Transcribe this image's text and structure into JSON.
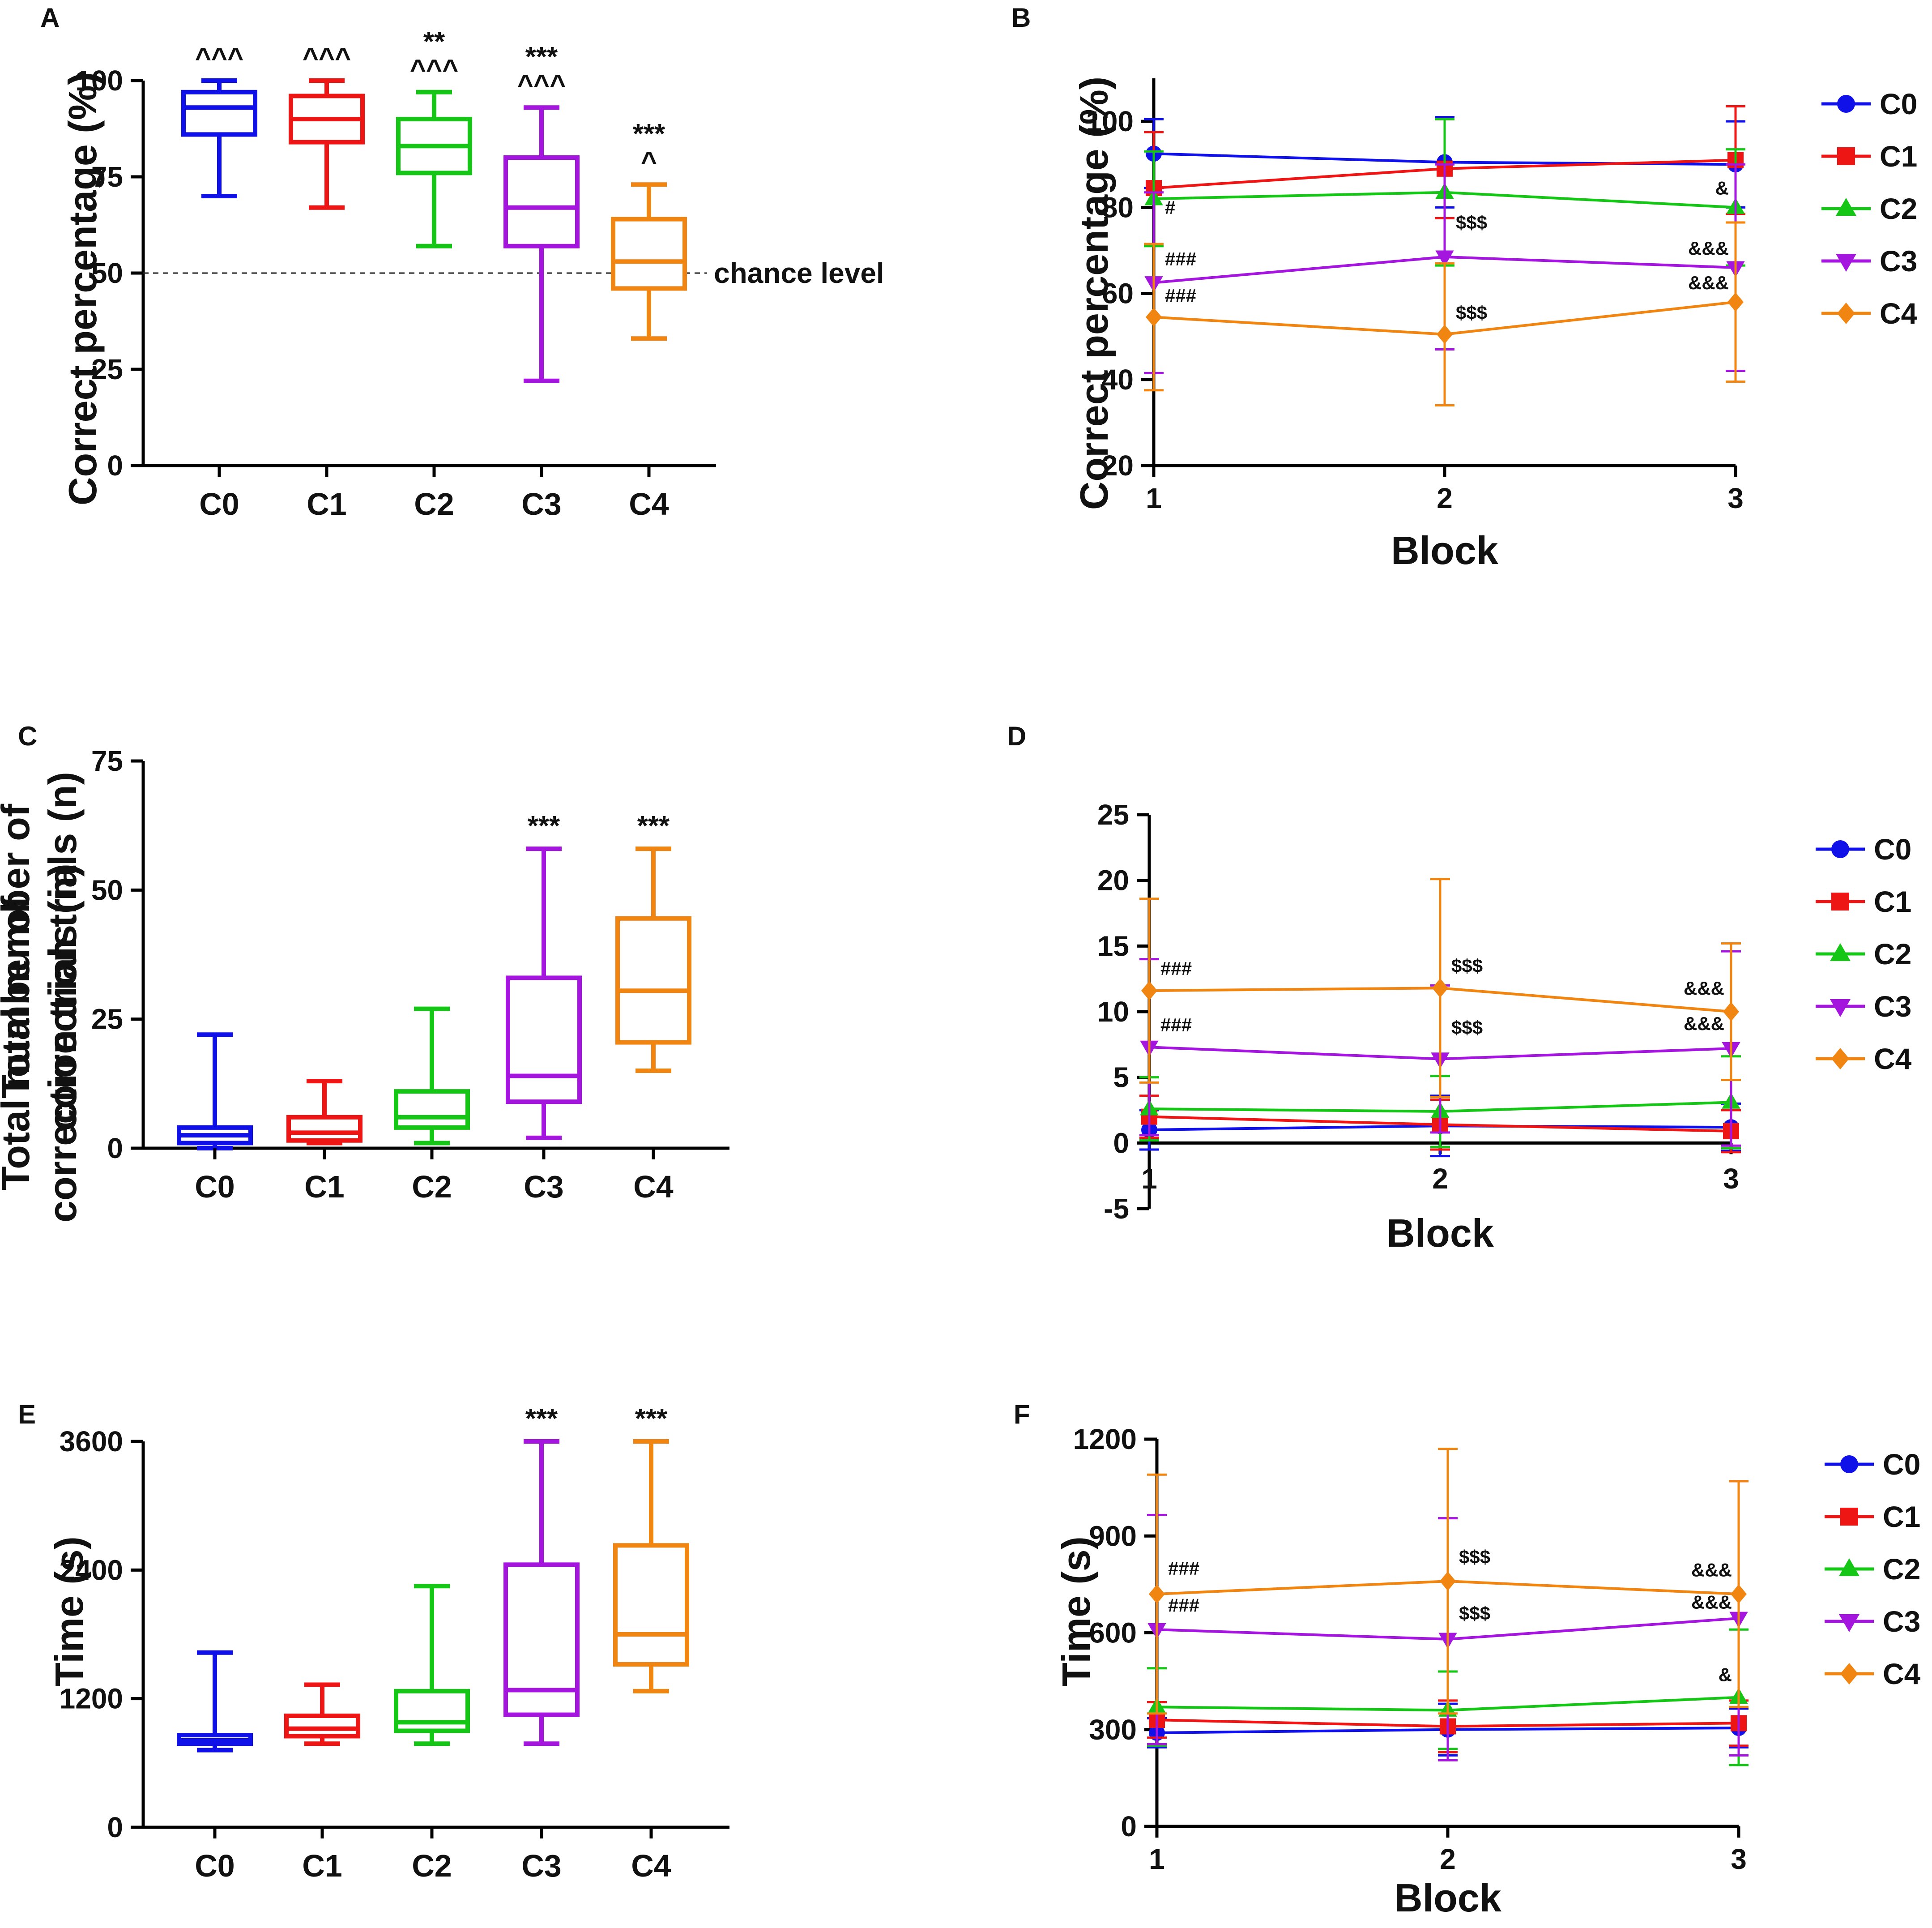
{
  "colors": {
    "C0": "#1010e8",
    "C1": "#ee1515",
    "C2": "#16c616",
    "C3": "#a415dd",
    "C4": "#f08512",
    "axis": "#000000"
  },
  "chart_data": [
    {
      "panel": "A",
      "type": "boxplot",
      "ylabel": "Correct percentage (%)",
      "yticks": [
        "0",
        "25",
        "50",
        "75",
        "100"
      ],
      "ylim": [
        0,
        100
      ],
      "categories": [
        "C0",
        "C1",
        "C2",
        "C3",
        "C4"
      ],
      "boxes": [
        {
          "min": 70,
          "q1": 86,
          "median": 93,
          "q3": 97,
          "max": 100
        },
        {
          "min": 67,
          "q1": 84,
          "median": 90,
          "q3": 96,
          "max": 100
        },
        {
          "min": 57,
          "q1": 76,
          "median": 83,
          "q3": 90,
          "max": 97
        },
        {
          "min": 22,
          "q1": 57,
          "median": 67,
          "q3": 80,
          "max": 93
        },
        {
          "min": 33,
          "q1": 46,
          "median": 53,
          "q3": 64,
          "max": 73
        }
      ],
      "significance": [
        [
          "^^^"
        ],
        [
          "^^^"
        ],
        [
          "**",
          "^^^"
        ],
        [
          "***",
          "^^^"
        ],
        [
          "***",
          "^"
        ]
      ],
      "reference_line": {
        "value": 50,
        "label": "chance level"
      }
    },
    {
      "panel": "B",
      "type": "line",
      "xlabel": "Block",
      "ylabel": "Correct percentage (%)",
      "x": [
        1,
        2,
        3
      ],
      "xticks": [
        "1",
        "2",
        "3"
      ],
      "yticks": [
        "20",
        "40",
        "60",
        "80",
        "100"
      ],
      "ylim": [
        20,
        110
      ],
      "series": [
        {
          "name": "C0",
          "values": [
            92.5,
            90.5,
            90
          ],
          "err": [
            8,
            10.5,
            10
          ],
          "marker": "circle"
        },
        {
          "name": "C1",
          "values": [
            84.5,
            89,
            91
          ],
          "err": [
            13,
            11.5,
            12.5
          ],
          "marker": "square"
        },
        {
          "name": "C2",
          "values": [
            82,
            83.5,
            80
          ],
          "err": [
            11,
            17,
            13.5
          ],
          "marker": "triangle-up"
        },
        {
          "name": "C3",
          "values": [
            62.5,
            68.5,
            66
          ],
          "err": [
            21,
            21.5,
            24
          ],
          "marker": "triangle-down"
        },
        {
          "name": "C4",
          "values": [
            54.5,
            50.5,
            58
          ],
          "err": [
            17,
            16.5,
            18.5
          ],
          "marker": "diamond"
        }
      ],
      "annotations": [
        {
          "text": "#",
          "x": 1,
          "y": 78.5
        },
        {
          "text": "###",
          "x": 1,
          "y": 66.5
        },
        {
          "text": "###",
          "x": 1,
          "y": 58
        },
        {
          "text": "$$$",
          "x": 2,
          "y": 75
        },
        {
          "text": "$$$",
          "x": 2,
          "y": 54
        },
        {
          "text": "&",
          "x": 3,
          "y": 83
        },
        {
          "text": "&&&",
          "x": 3,
          "y": 69
        },
        {
          "text": "&&&",
          "x": 3,
          "y": 61
        }
      ]
    },
    {
      "panel": "C",
      "type": "boxplot",
      "ylabel": "Total number of correction trials (n)",
      "yticks": [
        "0",
        "25",
        "50",
        "75"
      ],
      "ylim": [
        0,
        75
      ],
      "categories": [
        "C0",
        "C1",
        "C2",
        "C3",
        "C4"
      ],
      "boxes": [
        {
          "min": 0,
          "q1": 1,
          "median": 2.5,
          "q3": 4,
          "max": 22
        },
        {
          "min": 1,
          "q1": 1.5,
          "median": 3,
          "q3": 6,
          "max": 13
        },
        {
          "min": 1,
          "q1": 4,
          "median": 6,
          "q3": 11,
          "max": 27
        },
        {
          "min": 2,
          "q1": 9,
          "median": 14,
          "q3": 33,
          "max": 58
        },
        {
          "min": 15,
          "q1": 20.5,
          "median": 30.5,
          "q3": 44.5,
          "max": 58
        }
      ],
      "significance": [
        [],
        [],
        [],
        [
          "***"
        ],
        [
          "***"
        ]
      ]
    },
    {
      "panel": "D",
      "type": "line",
      "xlabel": "Block",
      "ylabel": "Total number of correction trials (n)",
      "x": [
        1,
        2,
        3
      ],
      "xticks": [
        "1",
        "2",
        "3"
      ],
      "yticks": [
        "-5",
        "0",
        "5",
        "10",
        "15",
        "20",
        "25"
      ],
      "ylim": [
        -5,
        25
      ],
      "series": [
        {
          "name": "C0",
          "values": [
            1,
            1.3,
            1.2
          ],
          "err": [
            1.5,
            2.3,
            1.8
          ],
          "marker": "circle"
        },
        {
          "name": "C1",
          "values": [
            2,
            1.4,
            0.9
          ],
          "err": [
            1.6,
            1.9,
            1.6
          ],
          "marker": "square"
        },
        {
          "name": "C2",
          "values": [
            2.6,
            2.4,
            3.1
          ],
          "err": [
            2.4,
            2.7,
            3.5
          ],
          "marker": "triangle-up"
        },
        {
          "name": "C3",
          "values": [
            7.3,
            6.4,
            7.2
          ],
          "err": [
            6.7,
            5.6,
            7.4
          ],
          "marker": "triangle-down"
        },
        {
          "name": "C4",
          "values": [
            11.6,
            11.8,
            10
          ],
          "err": [
            7,
            8.3,
            5.2
          ],
          "marker": "diamond"
        }
      ],
      "annotations": [
        {
          "text": "###",
          "x": 1,
          "y": 12.8
        },
        {
          "text": "###",
          "x": 1,
          "y": 8.5
        },
        {
          "text": "$$$",
          "x": 2,
          "y": 13
        },
        {
          "text": "$$$",
          "x": 2,
          "y": 8.3
        },
        {
          "text": "&&&",
          "x": 3,
          "y": 11.3
        },
        {
          "text": "&&&",
          "x": 3,
          "y": 8.6
        }
      ]
    },
    {
      "panel": "E",
      "type": "boxplot",
      "ylabel": "Time (s)",
      "yticks": [
        "0",
        "1200",
        "2400",
        "3600"
      ],
      "ylim": [
        0,
        3600
      ],
      "categories": [
        "C0",
        "C1",
        "C2",
        "C3",
        "C4"
      ],
      "boxes": [
        {
          "min": 720,
          "q1": 780,
          "median": 810,
          "q3": 860,
          "max": 1630
        },
        {
          "min": 780,
          "q1": 850,
          "median": 920,
          "q3": 1040,
          "max": 1330
        },
        {
          "min": 780,
          "q1": 900,
          "median": 980,
          "q3": 1270,
          "max": 2250
        },
        {
          "min": 780,
          "q1": 1050,
          "median": 1280,
          "q3": 2450,
          "max": 3600
        },
        {
          "min": 1270,
          "q1": 1520,
          "median": 1800,
          "q3": 2630,
          "max": 3600
        }
      ],
      "significance": [
        [],
        [],
        [],
        [
          "***"
        ],
        [
          "***"
        ]
      ]
    },
    {
      "panel": "F",
      "type": "line",
      "xlabel": "Block",
      "ylabel": "Time (s)",
      "x": [
        1,
        2,
        3
      ],
      "xticks": [
        "1",
        "2",
        "3"
      ],
      "yticks": [
        "0",
        "300",
        "600",
        "900",
        "1200"
      ],
      "ylim": [
        0,
        1200
      ],
      "series": [
        {
          "name": "C0",
          "values": [
            290,
            300,
            305
          ],
          "err": [
            45,
            80,
            60
          ],
          "marker": "circle"
        },
        {
          "name": "C1",
          "values": [
            330,
            310,
            320
          ],
          "err": [
            55,
            80,
            70
          ],
          "marker": "square"
        },
        {
          "name": "C2",
          "values": [
            370,
            360,
            400
          ],
          "err": [
            120,
            120,
            210
          ],
          "marker": "triangle-up"
        },
        {
          "name": "C3",
          "values": [
            610,
            580,
            645
          ],
          "err": [
            355,
            375,
            425
          ],
          "marker": "triangle-down"
        },
        {
          "name": "C4",
          "values": [
            720,
            760,
            720
          ],
          "err": [
            370,
            410,
            350
          ],
          "marker": "diamond"
        }
      ],
      "annotations": [
        {
          "text": "###",
          "x": 1,
          "y": 780
        },
        {
          "text": "###",
          "x": 1,
          "y": 665
        },
        {
          "text": "$$$",
          "x": 2,
          "y": 815
        },
        {
          "text": "$$$",
          "x": 2,
          "y": 640
        },
        {
          "text": "&&&",
          "x": 3,
          "y": 775
        },
        {
          "text": "&&&",
          "x": 3,
          "y": 675
        },
        {
          "text": "&",
          "x": 3,
          "y": 450
        }
      ]
    }
  ]
}
